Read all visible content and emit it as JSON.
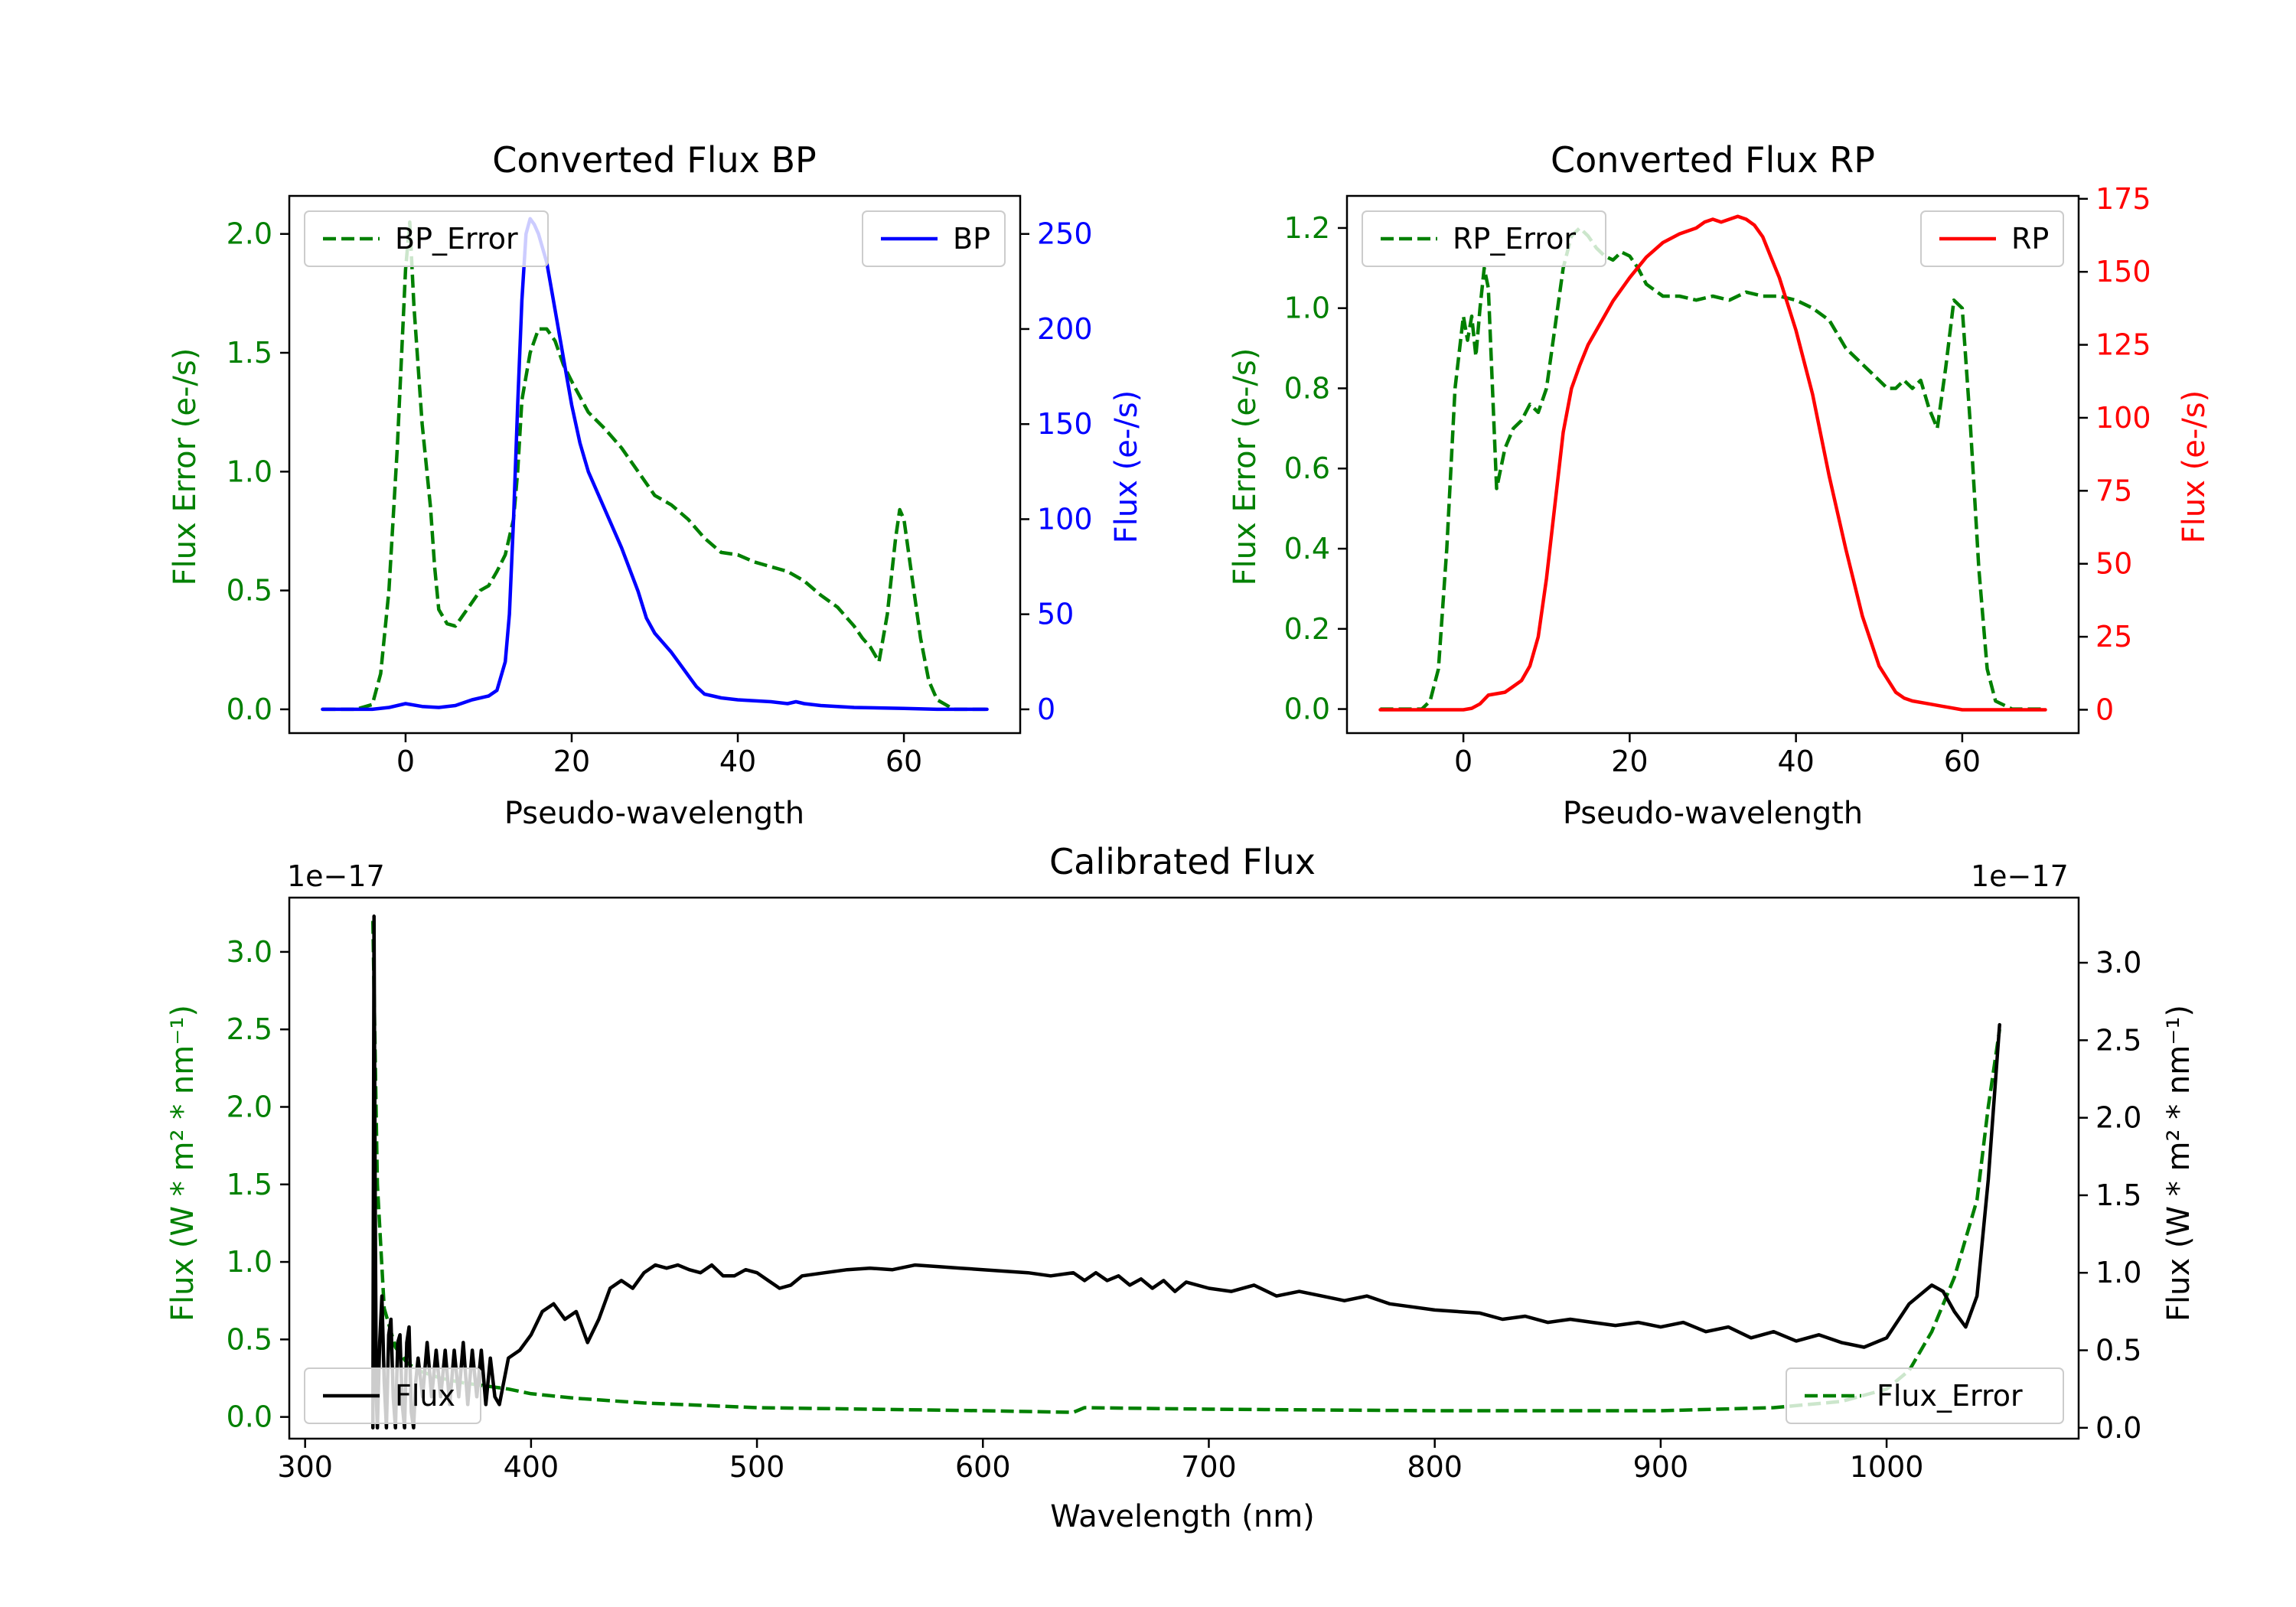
{
  "chart_data": [
    {
      "type": "line",
      "title": "Converted Flux BP",
      "xlabel": "Pseudo-wavelength",
      "xlim": [
        -14,
        74
      ],
      "xticks": [
        0,
        20,
        40,
        60
      ],
      "left_axis": {
        "label": "Flux Error (e-/s)",
        "color": "#008000",
        "ylim": [
          -0.1,
          2.16
        ],
        "ticks": [
          0.0,
          0.5,
          1.0,
          1.5,
          2.0
        ],
        "tick_labels": [
          "0.0",
          "0.5",
          "1.0",
          "1.5",
          "2.0"
        ]
      },
      "right_axis": {
        "label": "Flux (e-/s)",
        "color": "#0000ff",
        "ylim": [
          -12.5,
          270
        ],
        "ticks": [
          0,
          50,
          100,
          150,
          200,
          250
        ],
        "tick_labels": [
          "0",
          "50",
          "100",
          "150",
          "200",
          "250"
        ]
      },
      "series": [
        {
          "name": "BP_Error",
          "axis": "left",
          "color": "#008000",
          "dash": true,
          "legend": "upper left",
          "x": [
            -10,
            -6,
            -4,
            -3,
            -2,
            -1,
            0,
            0.5,
            1,
            2,
            3,
            3.5,
            4,
            5,
            6,
            7,
            8,
            9,
            10,
            11,
            12,
            13,
            13.5,
            14,
            15,
            16,
            17,
            18,
            19,
            20,
            22,
            24,
            26,
            28,
            30,
            32,
            34,
            36,
            38,
            40,
            42,
            44,
            46,
            48,
            50,
            52,
            54,
            55,
            56,
            57,
            58,
            59,
            59.5,
            60,
            61,
            62,
            63,
            64,
            66,
            70
          ],
          "y": [
            0,
            0,
            0.02,
            0.15,
            0.5,
            1.1,
            1.85,
            2.05,
            1.7,
            1.2,
            0.85,
            0.6,
            0.42,
            0.36,
            0.35,
            0.4,
            0.45,
            0.5,
            0.52,
            0.58,
            0.65,
            0.8,
            1.0,
            1.3,
            1.5,
            1.6,
            1.6,
            1.55,
            1.45,
            1.38,
            1.25,
            1.18,
            1.1,
            1.0,
            0.9,
            0.86,
            0.8,
            0.72,
            0.66,
            0.65,
            0.62,
            0.6,
            0.58,
            0.54,
            0.48,
            0.43,
            0.35,
            0.3,
            0.26,
            0.2,
            0.4,
            0.72,
            0.84,
            0.8,
            0.55,
            0.3,
            0.12,
            0.04,
            0,
            0
          ]
        },
        {
          "name": "BP",
          "axis": "right",
          "color": "#0000ff",
          "dash": false,
          "legend": "upper right",
          "x": [
            -10,
            -4,
            -2,
            0,
            2,
            4,
            6,
            8,
            10,
            11,
            12,
            12.5,
            13,
            13.5,
            14,
            14.5,
            15,
            15.5,
            16,
            17,
            18,
            19,
            20,
            21,
            22,
            24,
            26,
            28,
            29,
            30,
            32,
            34,
            35,
            36,
            37,
            38,
            40,
            44,
            46,
            47,
            48,
            50,
            54,
            60,
            64,
            70
          ],
          "y": [
            0,
            0,
            1,
            3,
            1.5,
            1,
            2,
            5,
            7,
            10,
            25,
            50,
            100,
            160,
            215,
            250,
            258,
            255,
            250,
            235,
            210,
            185,
            160,
            140,
            125,
            105,
            85,
            62,
            48,
            40,
            30,
            18,
            12,
            8,
            7,
            6,
            5,
            4,
            3,
            4,
            3,
            2,
            1,
            0.5,
            0,
            0
          ]
        }
      ]
    },
    {
      "type": "line",
      "title": "Converted Flux RP",
      "xlabel": "Pseudo-wavelength",
      "xlim": [
        -14,
        74
      ],
      "xticks": [
        0,
        20,
        40,
        60
      ],
      "left_axis": {
        "label": "Flux Error (e-/s)",
        "color": "#008000",
        "ylim": [
          -0.06,
          1.28
        ],
        "ticks": [
          0.0,
          0.2,
          0.4,
          0.6,
          0.8,
          1.0,
          1.2
        ],
        "tick_labels": [
          "0.0",
          "0.2",
          "0.4",
          "0.6",
          "0.8",
          "1.0",
          "1.2"
        ]
      },
      "right_axis": {
        "label": "Flux (e-/s)",
        "color": "#ff0000",
        "ylim": [
          -8,
          176
        ],
        "ticks": [
          0,
          25,
          50,
          75,
          100,
          125,
          150,
          175
        ],
        "tick_labels": [
          "0",
          "25",
          "50",
          "75",
          "100",
          "125",
          "150",
          "175"
        ]
      },
      "series": [
        {
          "name": "RP_Error",
          "axis": "left",
          "color": "#008000",
          "dash": true,
          "legend": "upper left",
          "x": [
            -10,
            -5,
            -4,
            -3,
            -2,
            -1,
            0,
            0.5,
            1,
            1.5,
            2,
            2.5,
            3,
            3.5,
            4,
            5,
            6,
            7,
            8,
            9,
            10,
            11,
            12,
            13,
            14,
            15,
            16,
            17,
            18,
            19,
            20,
            21,
            22,
            24,
            26,
            28,
            30,
            32,
            34,
            36,
            38,
            40,
            42,
            44,
            46,
            48,
            50,
            51,
            52,
            53,
            54,
            55,
            56,
            57,
            58,
            59,
            60,
            61,
            62,
            63,
            64,
            66,
            70
          ],
          "y": [
            0,
            0,
            0.02,
            0.1,
            0.4,
            0.8,
            0.98,
            0.92,
            0.98,
            0.88,
            1.0,
            1.1,
            1.05,
            0.8,
            0.55,
            0.65,
            0.7,
            0.72,
            0.76,
            0.74,
            0.8,
            0.95,
            1.1,
            1.18,
            1.2,
            1.18,
            1.15,
            1.13,
            1.12,
            1.14,
            1.13,
            1.1,
            1.06,
            1.03,
            1.03,
            1.02,
            1.03,
            1.02,
            1.04,
            1.03,
            1.03,
            1.02,
            1.0,
            0.97,
            0.9,
            0.86,
            0.82,
            0.8,
            0.8,
            0.82,
            0.8,
            0.82,
            0.75,
            0.7,
            0.85,
            1.02,
            1.0,
            0.7,
            0.35,
            0.1,
            0.02,
            0,
            0
          ]
        },
        {
          "name": "RP",
          "axis": "right",
          "color": "#ff0000",
          "dash": false,
          "legend": "upper right",
          "x": [
            -10,
            -2,
            0,
            1,
            2,
            3,
            5,
            6,
            7,
            8,
            9,
            10,
            11,
            12,
            13,
            14,
            15,
            16,
            17,
            18,
            20,
            22,
            24,
            26,
            28,
            29,
            30,
            31,
            32,
            33,
            34,
            35,
            36,
            37,
            38,
            40,
            42,
            44,
            46,
            48,
            50,
            52,
            53,
            54,
            56,
            58,
            60,
            62,
            64,
            70
          ],
          "y": [
            0,
            0,
            0,
            0.5,
            2,
            5,
            6,
            8,
            10,
            15,
            25,
            45,
            70,
            95,
            110,
            118,
            125,
            130,
            135,
            140,
            148,
            155,
            160,
            163,
            165,
            167,
            168,
            167,
            168,
            169,
            168,
            166,
            162,
            155,
            148,
            130,
            108,
            80,
            55,
            32,
            15,
            6,
            4,
            3,
            2,
            1,
            0,
            0,
            0,
            0
          ]
        }
      ]
    },
    {
      "type": "line",
      "title": "Calibrated Flux",
      "xlabel": "Wavelength (nm)",
      "xlim": [
        293,
        1085
      ],
      "xticks": [
        300,
        400,
        500,
        600,
        700,
        800,
        900,
        1000
      ],
      "left_axis": {
        "label": "Flux (W * m² * nm⁻¹)",
        "color": "#008000",
        "offset_text": "1e−17",
        "ylim": [
          -0.14,
          3.35
        ],
        "ticks": [
          0.0,
          0.5,
          1.0,
          1.5,
          2.0,
          2.5,
          3.0
        ],
        "tick_labels": [
          "0.0",
          "0.5",
          "1.0",
          "1.5",
          "2.0",
          "2.5",
          "3.0"
        ]
      },
      "right_axis": {
        "label": "Flux (W * m² * nm⁻¹)",
        "color": "#000000",
        "offset_text": "1e−17",
        "ylim": [
          -0.07,
          3.42
        ],
        "ticks": [
          0.0,
          0.5,
          1.0,
          1.5,
          2.0,
          2.5,
          3.0
        ],
        "tick_labels": [
          "0.0",
          "0.5",
          "1.0",
          "1.5",
          "2.0",
          "2.5",
          "3.0"
        ]
      },
      "series": [
        {
          "name": "Flux_Error",
          "axis": "left",
          "color": "#008000",
          "dash": true,
          "legend": "lower right",
          "x": [
            330,
            332,
            335,
            340,
            345,
            350,
            360,
            370,
            380,
            390,
            400,
            420,
            450,
            500,
            550,
            600,
            640,
            645,
            700,
            800,
            900,
            950,
            980,
            1000,
            1010,
            1020,
            1030,
            1040,
            1045,
            1050
          ],
          "y": [
            3.2,
            1.5,
            0.7,
            0.45,
            0.35,
            0.3,
            0.25,
            0.22,
            0.2,
            0.18,
            0.15,
            0.12,
            0.09,
            0.06,
            0.05,
            0.04,
            0.03,
            0.06,
            0.05,
            0.04,
            0.04,
            0.06,
            0.1,
            0.18,
            0.3,
            0.55,
            0.9,
            1.4,
            2.0,
            2.5
          ]
        },
        {
          "name": "Flux",
          "axis": "right",
          "color": "#000000",
          "dash": false,
          "legend": "lower left",
          "x": [
            330,
            330.5,
            331,
            331.5,
            332,
            333,
            334,
            335,
            336,
            337,
            338,
            339,
            340,
            341,
            342,
            343,
            344,
            345,
            346,
            347,
            348,
            349,
            350,
            352,
            354,
            356,
            358,
            360,
            362,
            364,
            366,
            368,
            370,
            372,
            374,
            376,
            378,
            380,
            382,
            384,
            386,
            388,
            390,
            395,
            400,
            405,
            410,
            415,
            420,
            425,
            430,
            435,
            440,
            445,
            450,
            455,
            460,
            465,
            470,
            475,
            480,
            485,
            490,
            495,
            500,
            505,
            510,
            515,
            520,
            530,
            540,
            550,
            560,
            570,
            580,
            590,
            600,
            610,
            620,
            630,
            640,
            645,
            650,
            655,
            660,
            665,
            670,
            675,
            680,
            685,
            690,
            700,
            710,
            720,
            730,
            740,
            750,
            760,
            770,
            780,
            790,
            800,
            810,
            820,
            830,
            840,
            850,
            860,
            870,
            880,
            890,
            900,
            910,
            920,
            930,
            940,
            950,
            960,
            970,
            980,
            990,
            1000,
            1010,
            1020,
            1025,
            1030,
            1035,
            1040,
            1045,
            1050
          ],
          "y": [
            0.0,
            3.3,
            1.5,
            0.2,
            0.0,
            0.55,
            0.85,
            0.3,
            0.0,
            0.6,
            0.7,
            0.2,
            0.0,
            0.55,
            0.6,
            0.15,
            0.0,
            0.55,
            0.65,
            0.1,
            0.0,
            0.3,
            0.45,
            0.2,
            0.55,
            0.2,
            0.5,
            0.2,
            0.5,
            0.15,
            0.5,
            0.2,
            0.55,
            0.15,
            0.5,
            0.2,
            0.5,
            0.15,
            0.45,
            0.2,
            0.15,
            0.3,
            0.45,
            0.5,
            0.6,
            0.75,
            0.8,
            0.7,
            0.75,
            0.55,
            0.7,
            0.9,
            0.95,
            0.9,
            1.0,
            1.05,
            1.03,
            1.05,
            1.02,
            1.0,
            1.05,
            0.98,
            0.98,
            1.02,
            1.0,
            0.95,
            0.9,
            0.92,
            0.98,
            1.0,
            1.02,
            1.03,
            1.02,
            1.05,
            1.04,
            1.03,
            1.02,
            1.01,
            1.0,
            0.98,
            1.0,
            0.95,
            1.0,
            0.95,
            0.98,
            0.92,
            0.96,
            0.9,
            0.95,
            0.88,
            0.94,
            0.9,
            0.88,
            0.92,
            0.85,
            0.88,
            0.85,
            0.82,
            0.85,
            0.8,
            0.78,
            0.76,
            0.75,
            0.74,
            0.7,
            0.72,
            0.68,
            0.7,
            0.68,
            0.66,
            0.68,
            0.65,
            0.68,
            0.62,
            0.65,
            0.58,
            0.62,
            0.56,
            0.6,
            0.55,
            0.52,
            0.58,
            0.8,
            0.92,
            0.88,
            0.75,
            0.65,
            0.85,
            1.6,
            2.6
          ]
        }
      ]
    }
  ]
}
